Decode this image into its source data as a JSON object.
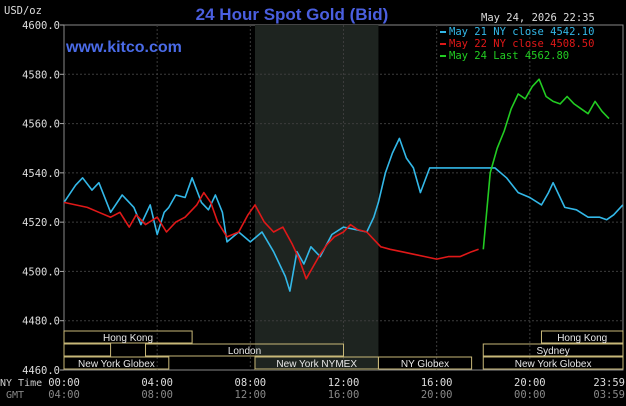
{
  "header": {
    "title": "24 Hour Spot Gold (Bid)",
    "datetime": "May 24, 2026 22:35",
    "website": "www.kitco.com",
    "unit": "USD/oz"
  },
  "legend": [
    {
      "label": "May 21 NY close",
      "value": "4542.10",
      "color": "#33b8e8"
    },
    {
      "label": "May 22 NY close",
      "value": "4508.50",
      "color": "#e01818"
    },
    {
      "label": "May 24 Last",
      "value": "4562.80",
      "color": "#22cc22"
    }
  ],
  "footer": {
    "ny_time_label": "NY Time",
    "gmt_label": "GMT"
  },
  "sessions": {
    "row1": [
      {
        "label": "Hong Kong",
        "start": 0,
        "end": 5.5
      },
      {
        "label": "Hong Kong",
        "start": 20.5,
        "end": 24
      }
    ],
    "row2": [
      {
        "label": "",
        "start": 0,
        "end": 2
      },
      {
        "label": "London",
        "start": 3.5,
        "end": 12
      },
      {
        "label": "Sydney",
        "start": 18,
        "end": 24
      }
    ],
    "row3": [
      {
        "label": "New York Globex",
        "start": 0,
        "end": 4.5
      },
      {
        "label": "New York NYMEX",
        "start": 8.2,
        "end": 13.5
      },
      {
        "label": "NY Globex",
        "start": 13.5,
        "end": 17.5
      },
      {
        "label": "New York Globex",
        "start": 18,
        "end": 24
      }
    ]
  },
  "chart_data": {
    "type": "line",
    "title": "24 Hour Spot Gold (Bid)",
    "ylabel": "USD/oz",
    "xlim": [
      0,
      24
    ],
    "ylim": [
      4460,
      4600
    ],
    "yticks": [
      "4460.0",
      "4480.0",
      "4500.0",
      "4520.0",
      "4540.0",
      "4560.0",
      "4580.0",
      "4600.0"
    ],
    "xticks_ny": [
      "00:00",
      "04:00",
      "08:00",
      "12:00",
      "16:00",
      "20:00",
      "23:59"
    ],
    "xticks_gmt": [
      "04:00",
      "08:00",
      "12:00",
      "16:00",
      "20:00",
      "00:00",
      "03:59"
    ],
    "shaded_region": [
      8.2,
      13.5
    ],
    "series": [
      {
        "name": "May 21 NY close",
        "color": "#33b8e8",
        "x": [
          0,
          0.5,
          0.8,
          1.2,
          1.5,
          2,
          2.5,
          3,
          3.3,
          3.7,
          4,
          4.3,
          4.5,
          4.8,
          5.2,
          5.5,
          5.9,
          6.2,
          6.5,
          6.8,
          7,
          7.5,
          8,
          8.5,
          9,
          9.5,
          9.7,
          10,
          10.3,
          10.6,
          11,
          11.5,
          12,
          12.5,
          13,
          13.3,
          13.5,
          13.8,
          14.1,
          14.4,
          14.7,
          15,
          15.3,
          15.7,
          16,
          16.5,
          17,
          17.5,
          17.8,
          18.5,
          19,
          19.5,
          20,
          20.5,
          20.8,
          21,
          21.5,
          22,
          22.5,
          23,
          23.3,
          23.6,
          23.8,
          23.99
        ],
        "y": [
          4528,
          4535,
          4538,
          4533,
          4536,
          4524,
          4531,
          4526,
          4519,
          4527,
          4515,
          4524,
          4526,
          4531,
          4530,
          4538,
          4528,
          4525,
          4531,
          4524,
          4512,
          4516,
          4512,
          4516,
          4508,
          4498,
          4492,
          4508,
          4503,
          4510,
          4506,
          4515,
          4518,
          4517,
          4516,
          4522,
          4528,
          4540,
          4548,
          4554,
          4546,
          4542,
          4532,
          4542,
          4542,
          4542,
          4542,
          4542,
          4542,
          4542,
          4538,
          4532,
          4530,
          4527,
          4532,
          4536,
          4526,
          4525,
          4522,
          4522,
          4521,
          4523,
          4525,
          4527
        ]
      },
      {
        "name": "May 22 NY close",
        "color": "#e01818",
        "x": [
          0,
          0.5,
          1,
          1.5,
          2,
          2.4,
          2.8,
          3.1,
          3.5,
          4,
          4.4,
          4.8,
          5.2,
          5.7,
          6,
          6.3,
          6.6,
          7,
          7.5,
          7.9,
          8.2,
          8.6,
          9,
          9.4,
          9.8,
          10.1,
          10.4,
          10.7,
          11,
          11.3,
          11.6,
          12,
          12.3,
          12.6,
          13,
          13.3,
          13.6,
          14,
          14.5,
          15,
          15.5,
          16,
          16.5,
          17,
          17.5,
          17.8
        ],
        "y": [
          4528,
          4527,
          4526,
          4524,
          4522,
          4524,
          4518,
          4523,
          4519,
          4522,
          4516,
          4520,
          4522,
          4527,
          4532,
          4528,
          4520,
          4514,
          4516,
          4523,
          4527,
          4520,
          4516,
          4518,
          4511,
          4505,
          4497,
          4502,
          4507,
          4511,
          4514,
          4516,
          4519,
          4517,
          4516,
          4513,
          4510,
          4509,
          4508,
          4507,
          4506,
          4505,
          4506,
          4506,
          4508,
          4509
        ]
      },
      {
        "name": "May 24 Last",
        "color": "#22cc22",
        "x": [
          18.0,
          18.3,
          18.6,
          18.9,
          19.2,
          19.5,
          19.8,
          20.1,
          20.4,
          20.7,
          21.0,
          21.3,
          21.6,
          21.9,
          22.2,
          22.5,
          22.8,
          23.1,
          23.4
        ],
        "y": [
          4509,
          4540,
          4550,
          4557,
          4566,
          4572,
          4570,
          4575,
          4578,
          4571,
          4569,
          4568,
          4571,
          4568,
          4566,
          4564,
          4569,
          4565,
          4562
        ]
      }
    ]
  }
}
